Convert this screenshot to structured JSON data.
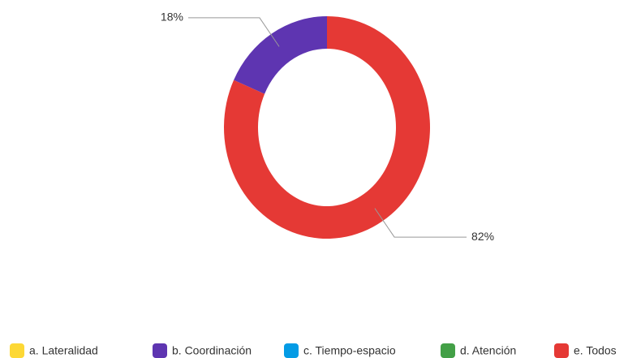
{
  "chart_data": {
    "type": "donut",
    "categories": [
      "a. Lateralidad",
      "b. Coordinación",
      "c. Tiempo-espacio",
      "d. Atención",
      "e. Todos"
    ],
    "values": [
      0,
      18,
      0,
      0,
      82
    ],
    "value_labels": [
      null,
      "18%",
      null,
      null,
      "82%"
    ],
    "colors": [
      "#fdd835",
      "#5e35b1",
      "#039be5",
      "#43a047",
      "#e53935"
    ],
    "legend": "bottom"
  }
}
